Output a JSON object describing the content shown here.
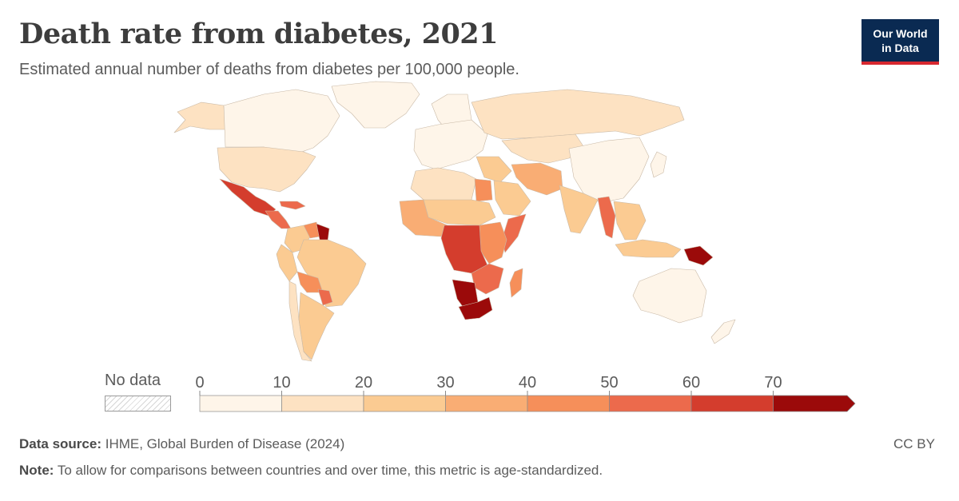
{
  "header": {
    "title": "Death rate from diabetes, 2021",
    "subtitle": "Estimated annual number of deaths from diabetes per 100,000 people."
  },
  "logo": {
    "line1": "Our World",
    "line2": "in Data"
  },
  "legend": {
    "no_data_label": "No data",
    "bins": [
      {
        "from": 0,
        "to": 10,
        "color": "#fef5e9"
      },
      {
        "from": 10,
        "to": 20,
        "color": "#fde2c2"
      },
      {
        "from": 20,
        "to": 30,
        "color": "#fbcb92"
      },
      {
        "from": 30,
        "to": 40,
        "color": "#f9ad74"
      },
      {
        "from": 40,
        "to": 50,
        "color": "#f68f5a"
      },
      {
        "from": 50,
        "to": 60,
        "color": "#ec6a4c"
      },
      {
        "from": 60,
        "to": 70,
        "color": "#d43d2d"
      },
      {
        "from": 70,
        "to": null,
        "color": "#9b0a0a"
      }
    ],
    "ticks": [
      "0",
      "10",
      "20",
      "30",
      "40",
      "50",
      "60",
      "70"
    ]
  },
  "footer": {
    "source_label": "Data source:",
    "source_text": "IHME, Global Burden of Disease (2024)",
    "note_label": "Note:",
    "note_text": "To allow for comparisons between countries and over time, this metric is age-standardized.",
    "license": "CC BY"
  },
  "map_regions": [
    {
      "id": "greenland",
      "bin": 0
    },
    {
      "id": "canada",
      "bin": 0
    },
    {
      "id": "alaska",
      "bin": 1
    },
    {
      "id": "usa",
      "bin": 1
    },
    {
      "id": "mexico",
      "bin": 6
    },
    {
      "id": "central-america",
      "bin": 5
    },
    {
      "id": "caribbean",
      "bin": 5
    },
    {
      "id": "venezuela",
      "bin": 4
    },
    {
      "id": "guyana-suriname",
      "bin": 7
    },
    {
      "id": "colombia",
      "bin": 2
    },
    {
      "id": "peru",
      "bin": 2
    },
    {
      "id": "brazil",
      "bin": 2
    },
    {
      "id": "bolivia",
      "bin": 4
    },
    {
      "id": "paraguay",
      "bin": 5
    },
    {
      "id": "argentina",
      "bin": 2
    },
    {
      "id": "chile",
      "bin": 1
    },
    {
      "id": "europe",
      "bin": 0
    },
    {
      "id": "scandinavia",
      "bin": 0
    },
    {
      "id": "russia",
      "bin": 1
    },
    {
      "id": "central-asia",
      "bin": 1
    },
    {
      "id": "china",
      "bin": 0
    },
    {
      "id": "middle-east",
      "bin": 2
    },
    {
      "id": "iran-pakistan",
      "bin": 3
    },
    {
      "id": "india",
      "bin": 2
    },
    {
      "id": "myanmar",
      "bin": 5
    },
    {
      "id": "southeast-asia",
      "bin": 2
    },
    {
      "id": "indonesia",
      "bin": 2
    },
    {
      "id": "papua-new-guinea",
      "bin": 7
    },
    {
      "id": "australia",
      "bin": 0
    },
    {
      "id": "new-zealand",
      "bin": 0
    },
    {
      "id": "japan",
      "bin": 0
    },
    {
      "id": "north-africa",
      "bin": 1
    },
    {
      "id": "egypt",
      "bin": 4
    },
    {
      "id": "west-africa",
      "bin": 3
    },
    {
      "id": "sahel",
      "bin": 2
    },
    {
      "id": "central-africa",
      "bin": 6
    },
    {
      "id": "east-africa",
      "bin": 4
    },
    {
      "id": "somalia",
      "bin": 5
    },
    {
      "id": "southern-africa",
      "bin": 5
    },
    {
      "id": "namibia-botswana",
      "bin": 7
    },
    {
      "id": "south-africa",
      "bin": 7
    },
    {
      "id": "madagascar",
      "bin": 4
    },
    {
      "id": "arabia",
      "bin": 2
    }
  ]
}
